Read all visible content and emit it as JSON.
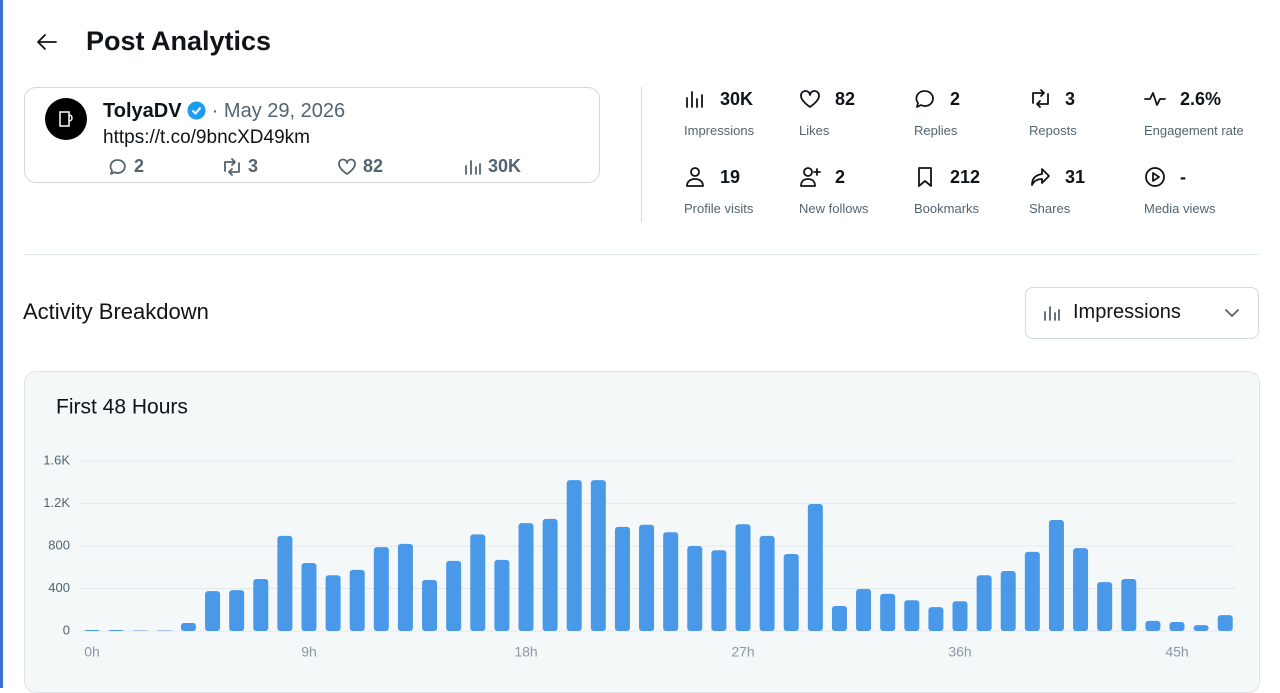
{
  "header": {
    "title": "Post Analytics"
  },
  "post": {
    "author": "TolyaDV",
    "separator": "·",
    "date": "May 29, 2026",
    "link": "https://t.co/9bncXD49km",
    "stats": {
      "replies": "2",
      "reposts": "3",
      "likes": "82",
      "views": "30K"
    }
  },
  "metrics": [
    {
      "value": "30K",
      "label": "Impressions"
    },
    {
      "value": "82",
      "label": "Likes"
    },
    {
      "value": "2",
      "label": "Replies"
    },
    {
      "value": "3",
      "label": "Reposts"
    },
    {
      "value": "2.6%",
      "label": "Engagement rate"
    },
    {
      "value": "19",
      "label": "Profile visits"
    },
    {
      "value": "2",
      "label": "New follows"
    },
    {
      "value": "212",
      "label": "Bookmarks"
    },
    {
      "value": "31",
      "label": "Shares"
    },
    {
      "value": "-",
      "label": "Media views"
    }
  ],
  "section": {
    "title": "Activity Breakdown",
    "dropdown": "Impressions"
  },
  "chart_data": {
    "type": "bar",
    "title": "First 48 Hours",
    "color": "#4a99e9",
    "grid": true,
    "categories": [
      "0h",
      null,
      null,
      null,
      null,
      null,
      null,
      null,
      null,
      "9h",
      null,
      null,
      null,
      null,
      null,
      null,
      null,
      null,
      "18h",
      null,
      null,
      null,
      null,
      null,
      null,
      null,
      null,
      "27h",
      null,
      null,
      null,
      null,
      null,
      null,
      null,
      null,
      "36h",
      null,
      null,
      null,
      null,
      null,
      null,
      null,
      null,
      "45h",
      null,
      null
    ],
    "values": [
      10,
      10,
      5,
      5,
      75,
      375,
      385,
      490,
      895,
      640,
      525,
      575,
      790,
      820,
      480,
      660,
      910,
      670,
      1015,
      1055,
      1420,
      1420,
      980,
      1000,
      930,
      800,
      760,
      1005,
      895,
      725,
      1195,
      235,
      395,
      350,
      290,
      225,
      280,
      525,
      565,
      745,
      1045,
      780,
      460,
      490,
      95,
      85,
      55,
      150
    ],
    "ylim": [
      0,
      1600
    ],
    "yticks": [
      0,
      400,
      800,
      {
        "value": 1200,
        "label": "1.2K"
      },
      {
        "value": 1600,
        "label": "1.6K"
      }
    ]
  }
}
